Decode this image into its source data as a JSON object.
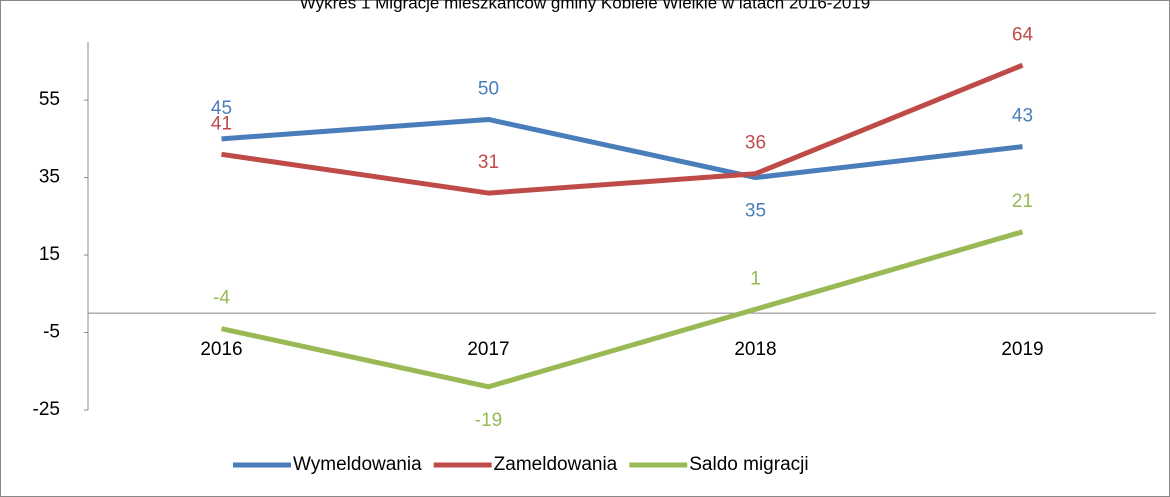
{
  "chart_data": {
    "type": "line",
    "title": "Wykres 1 Migracje mieszkańców gminy Kobiele Wielkie w latach 2016-2019",
    "categories": [
      "2016",
      "2017",
      "2018",
      "2019"
    ],
    "series": [
      {
        "name": "Wymeldowania",
        "color": "#4a7ebb",
        "values": [
          45,
          50,
          35,
          43
        ]
      },
      {
        "name": "Zameldowania",
        "color": "#be4b48",
        "values": [
          41,
          31,
          36,
          64
        ]
      },
      {
        "name": "Saldo migracji",
        "color": "#98b954",
        "values": [
          -4,
          -19,
          1,
          21
        ]
      }
    ],
    "ylim": [
      -25,
      70
    ],
    "yticks": [
      -25,
      -5,
      15,
      35,
      55
    ],
    "legend": "bottom"
  }
}
